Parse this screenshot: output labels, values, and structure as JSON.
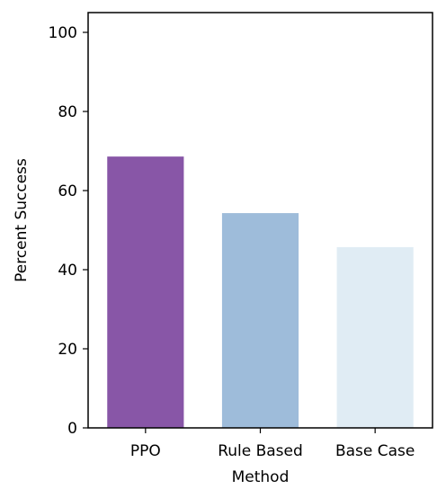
{
  "chart_data": {
    "type": "bar",
    "categories": [
      "PPO",
      "Rule Based",
      "Base Case"
    ],
    "values": [
      68.6,
      54.3,
      45.7
    ],
    "xlabel": "Method",
    "ylabel": "Percent Success",
    "ylim": [
      0,
      105
    ],
    "yticks": [
      0,
      20,
      40,
      60,
      80,
      100
    ],
    "grid": false,
    "colors": [
      "#8856a7",
      "#9ebcda",
      "#e0ecf4"
    ]
  }
}
